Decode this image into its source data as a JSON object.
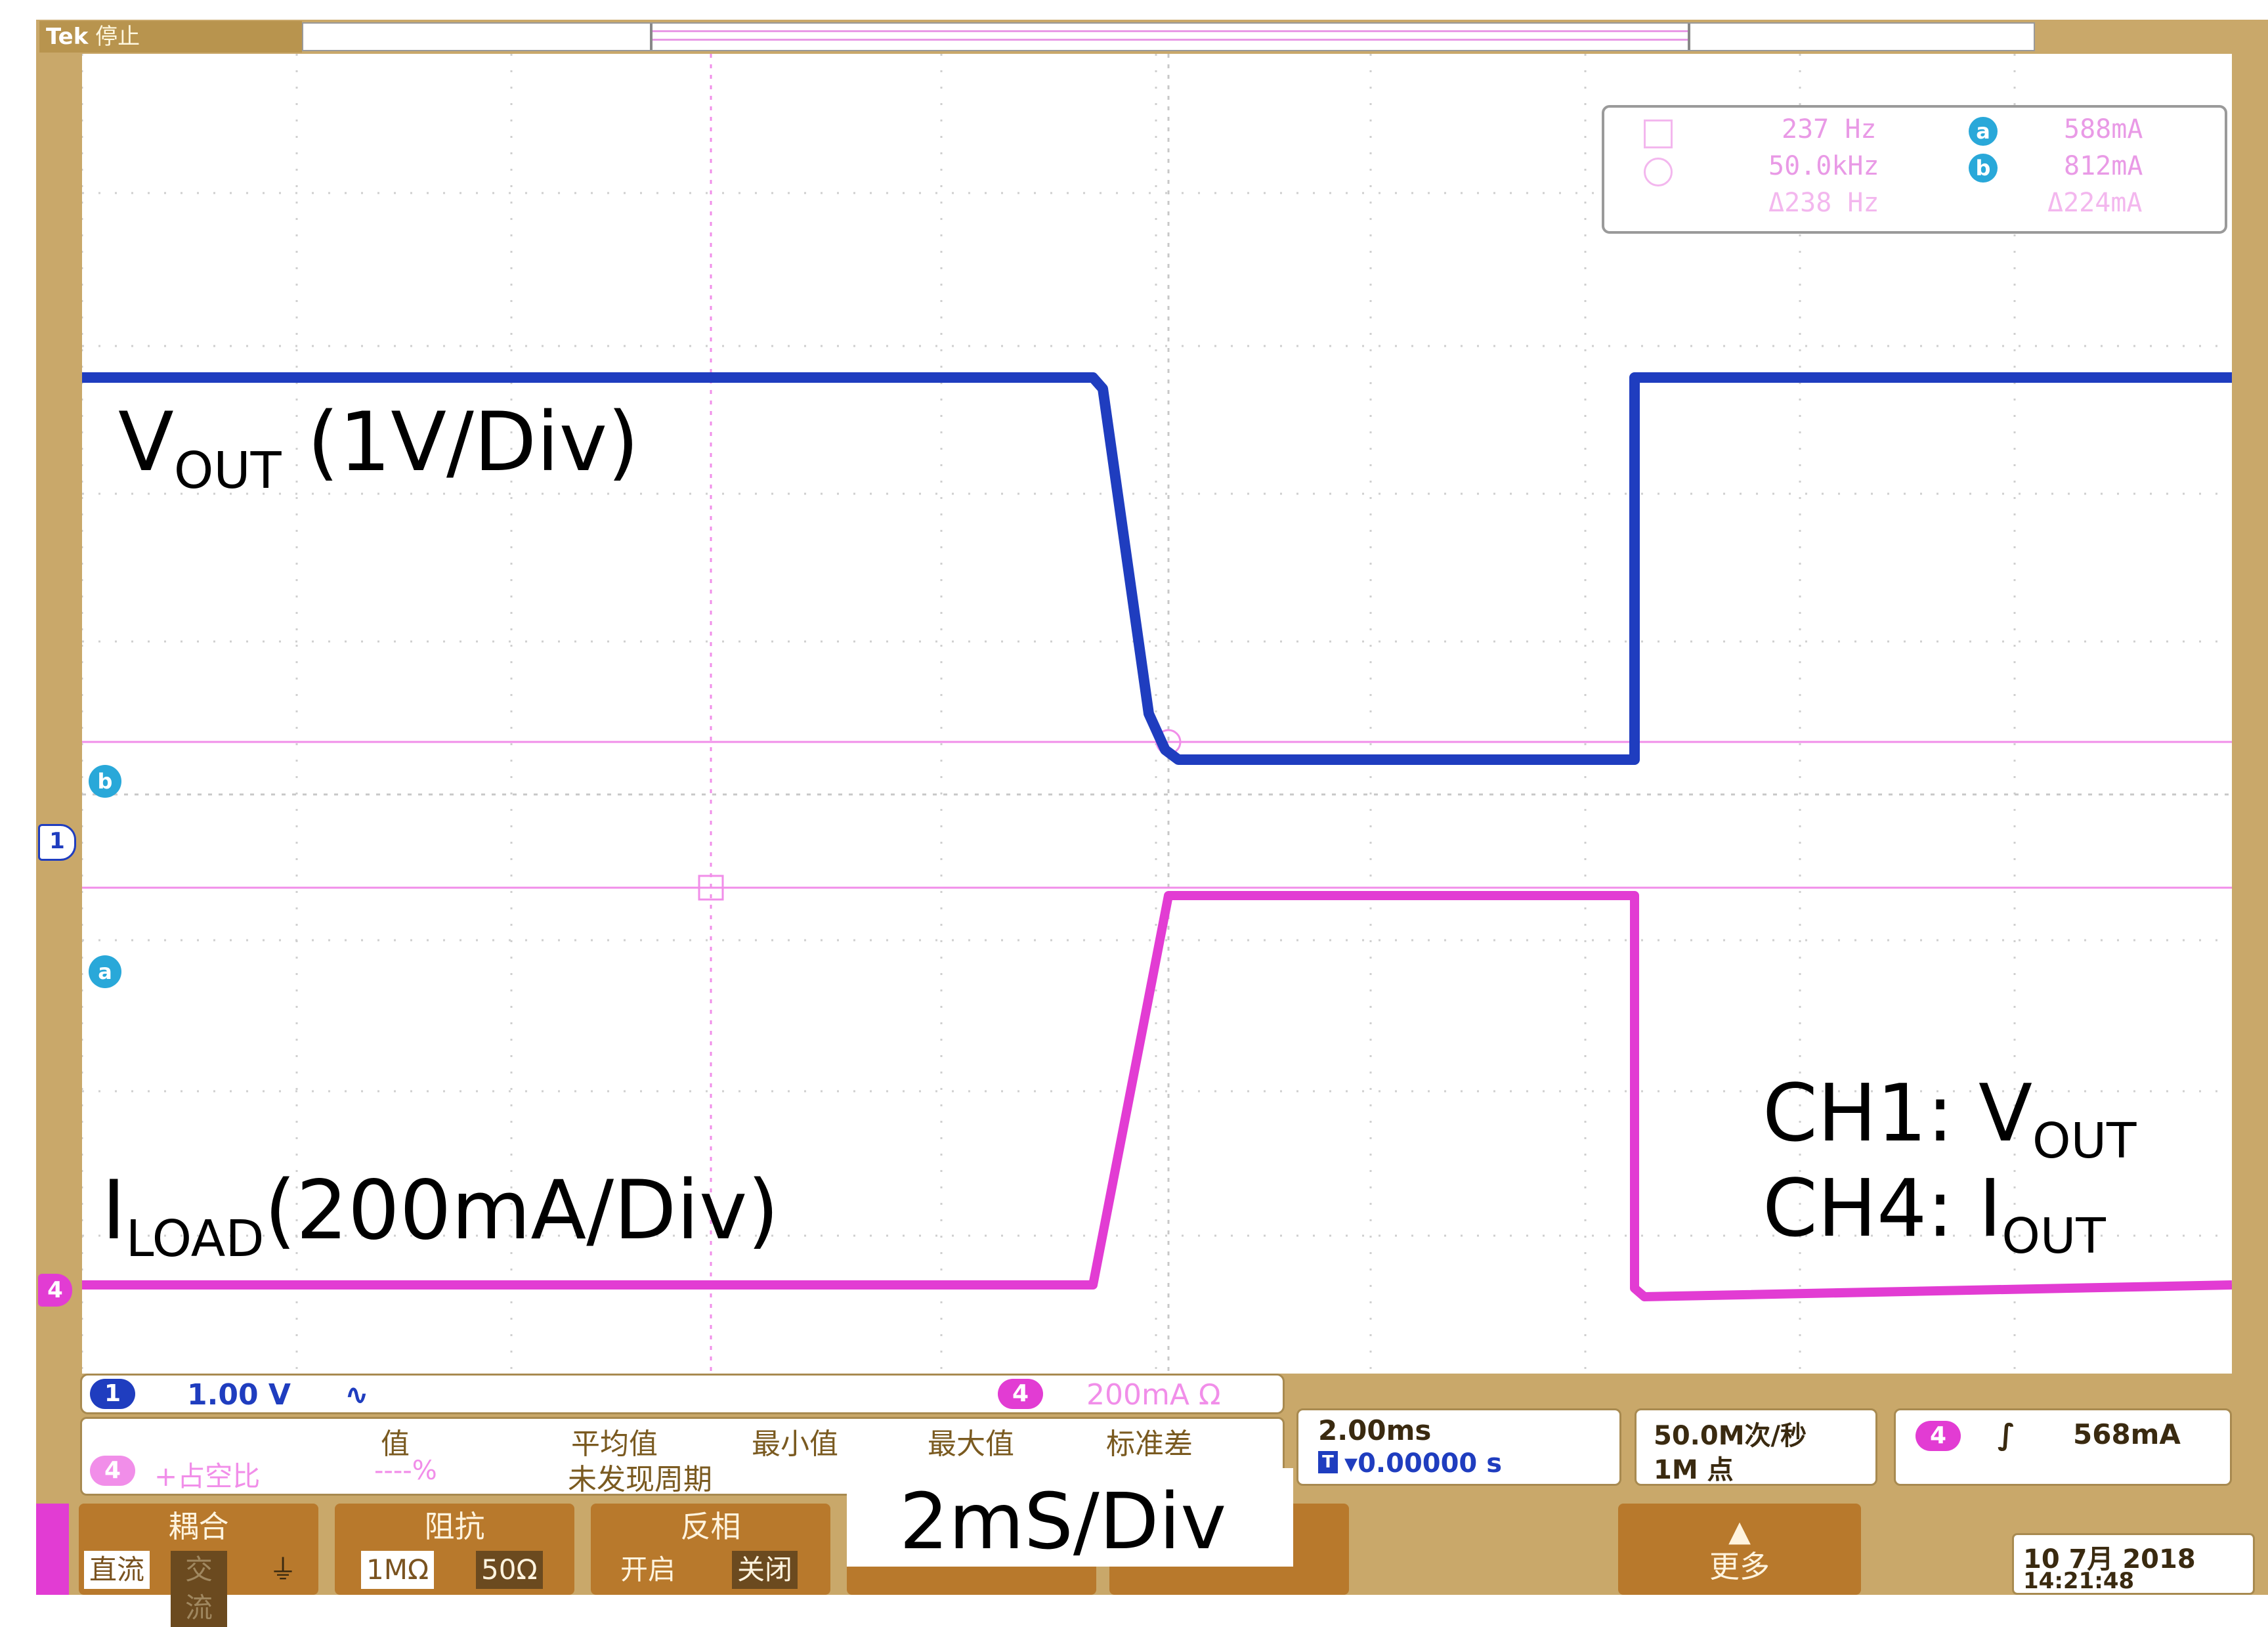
{
  "status": {
    "brand": "Tek",
    "state": "停止"
  },
  "trigger_marker": "T",
  "waveform_labels": {
    "vout_main": "V",
    "vout_sub": "OUT",
    "vout_scale": " (1V/Div)",
    "iload_main": "I",
    "iload_sub": "LOAD",
    "iload_scale": "(200mA/Div)",
    "ch1_prefix": "CH1: V",
    "ch1_sub": "OUT",
    "ch4_prefix": "CH4:  I",
    "ch4_sub": "OUT",
    "timebase_note": "2mS/Div"
  },
  "cursor_readout": {
    "f1": "237 Hz",
    "f2": "50.0kHz",
    "df": "Δ238 Hz",
    "a_label": "a",
    "b_label": "b",
    "a_val": "588mA",
    "b_val": "812mA",
    "dab": "Δ224mA"
  },
  "channel_markers": {
    "ch1": "1",
    "ch4": "4",
    "cur_a": "a",
    "cur_b": "b"
  },
  "bottom_bar": {
    "ch1_badge": "1",
    "ch1_scale": "1.00 V",
    "ch1_coupling": "∿",
    "ch4_badge": "4",
    "ch4_scale": "200mA Ω",
    "meas_source_badge": "4",
    "meas_source_name": "+占空比",
    "meas_headers": [
      "值",
      "平均值",
      "最小值",
      "最大值",
      "标准差"
    ],
    "meas_value": "----%",
    "meas_status": "未发现周期",
    "horiz_scale": "2.00ms",
    "horiz_pos": "▾0.00000 s",
    "sample_rate": "50.0M次/秒",
    "record_len": "1M 点",
    "trig_badge": "4",
    "trig_slope": "∫",
    "trig_level": "568mA",
    "date": "10 7月  2018",
    "time": "14:21:48"
  },
  "menu": {
    "coupling": {
      "title": "耦合",
      "opt1": "直流",
      "opt2": "交流",
      "opt3": "⏚"
    },
    "impedance": {
      "title": "阻抗",
      "opt1": "1MΩ",
      "opt2": "50Ω"
    },
    "invert": {
      "title": "反相",
      "opt1": "开启",
      "opt2": "关闭"
    },
    "more": {
      "arrow": "▲",
      "title": "更多"
    }
  },
  "colors": {
    "ch1": "#1f3dbf",
    "ch4": "#e23cd3",
    "cursor": "#29a8d9",
    "bezel": "#c9a86a"
  }
}
